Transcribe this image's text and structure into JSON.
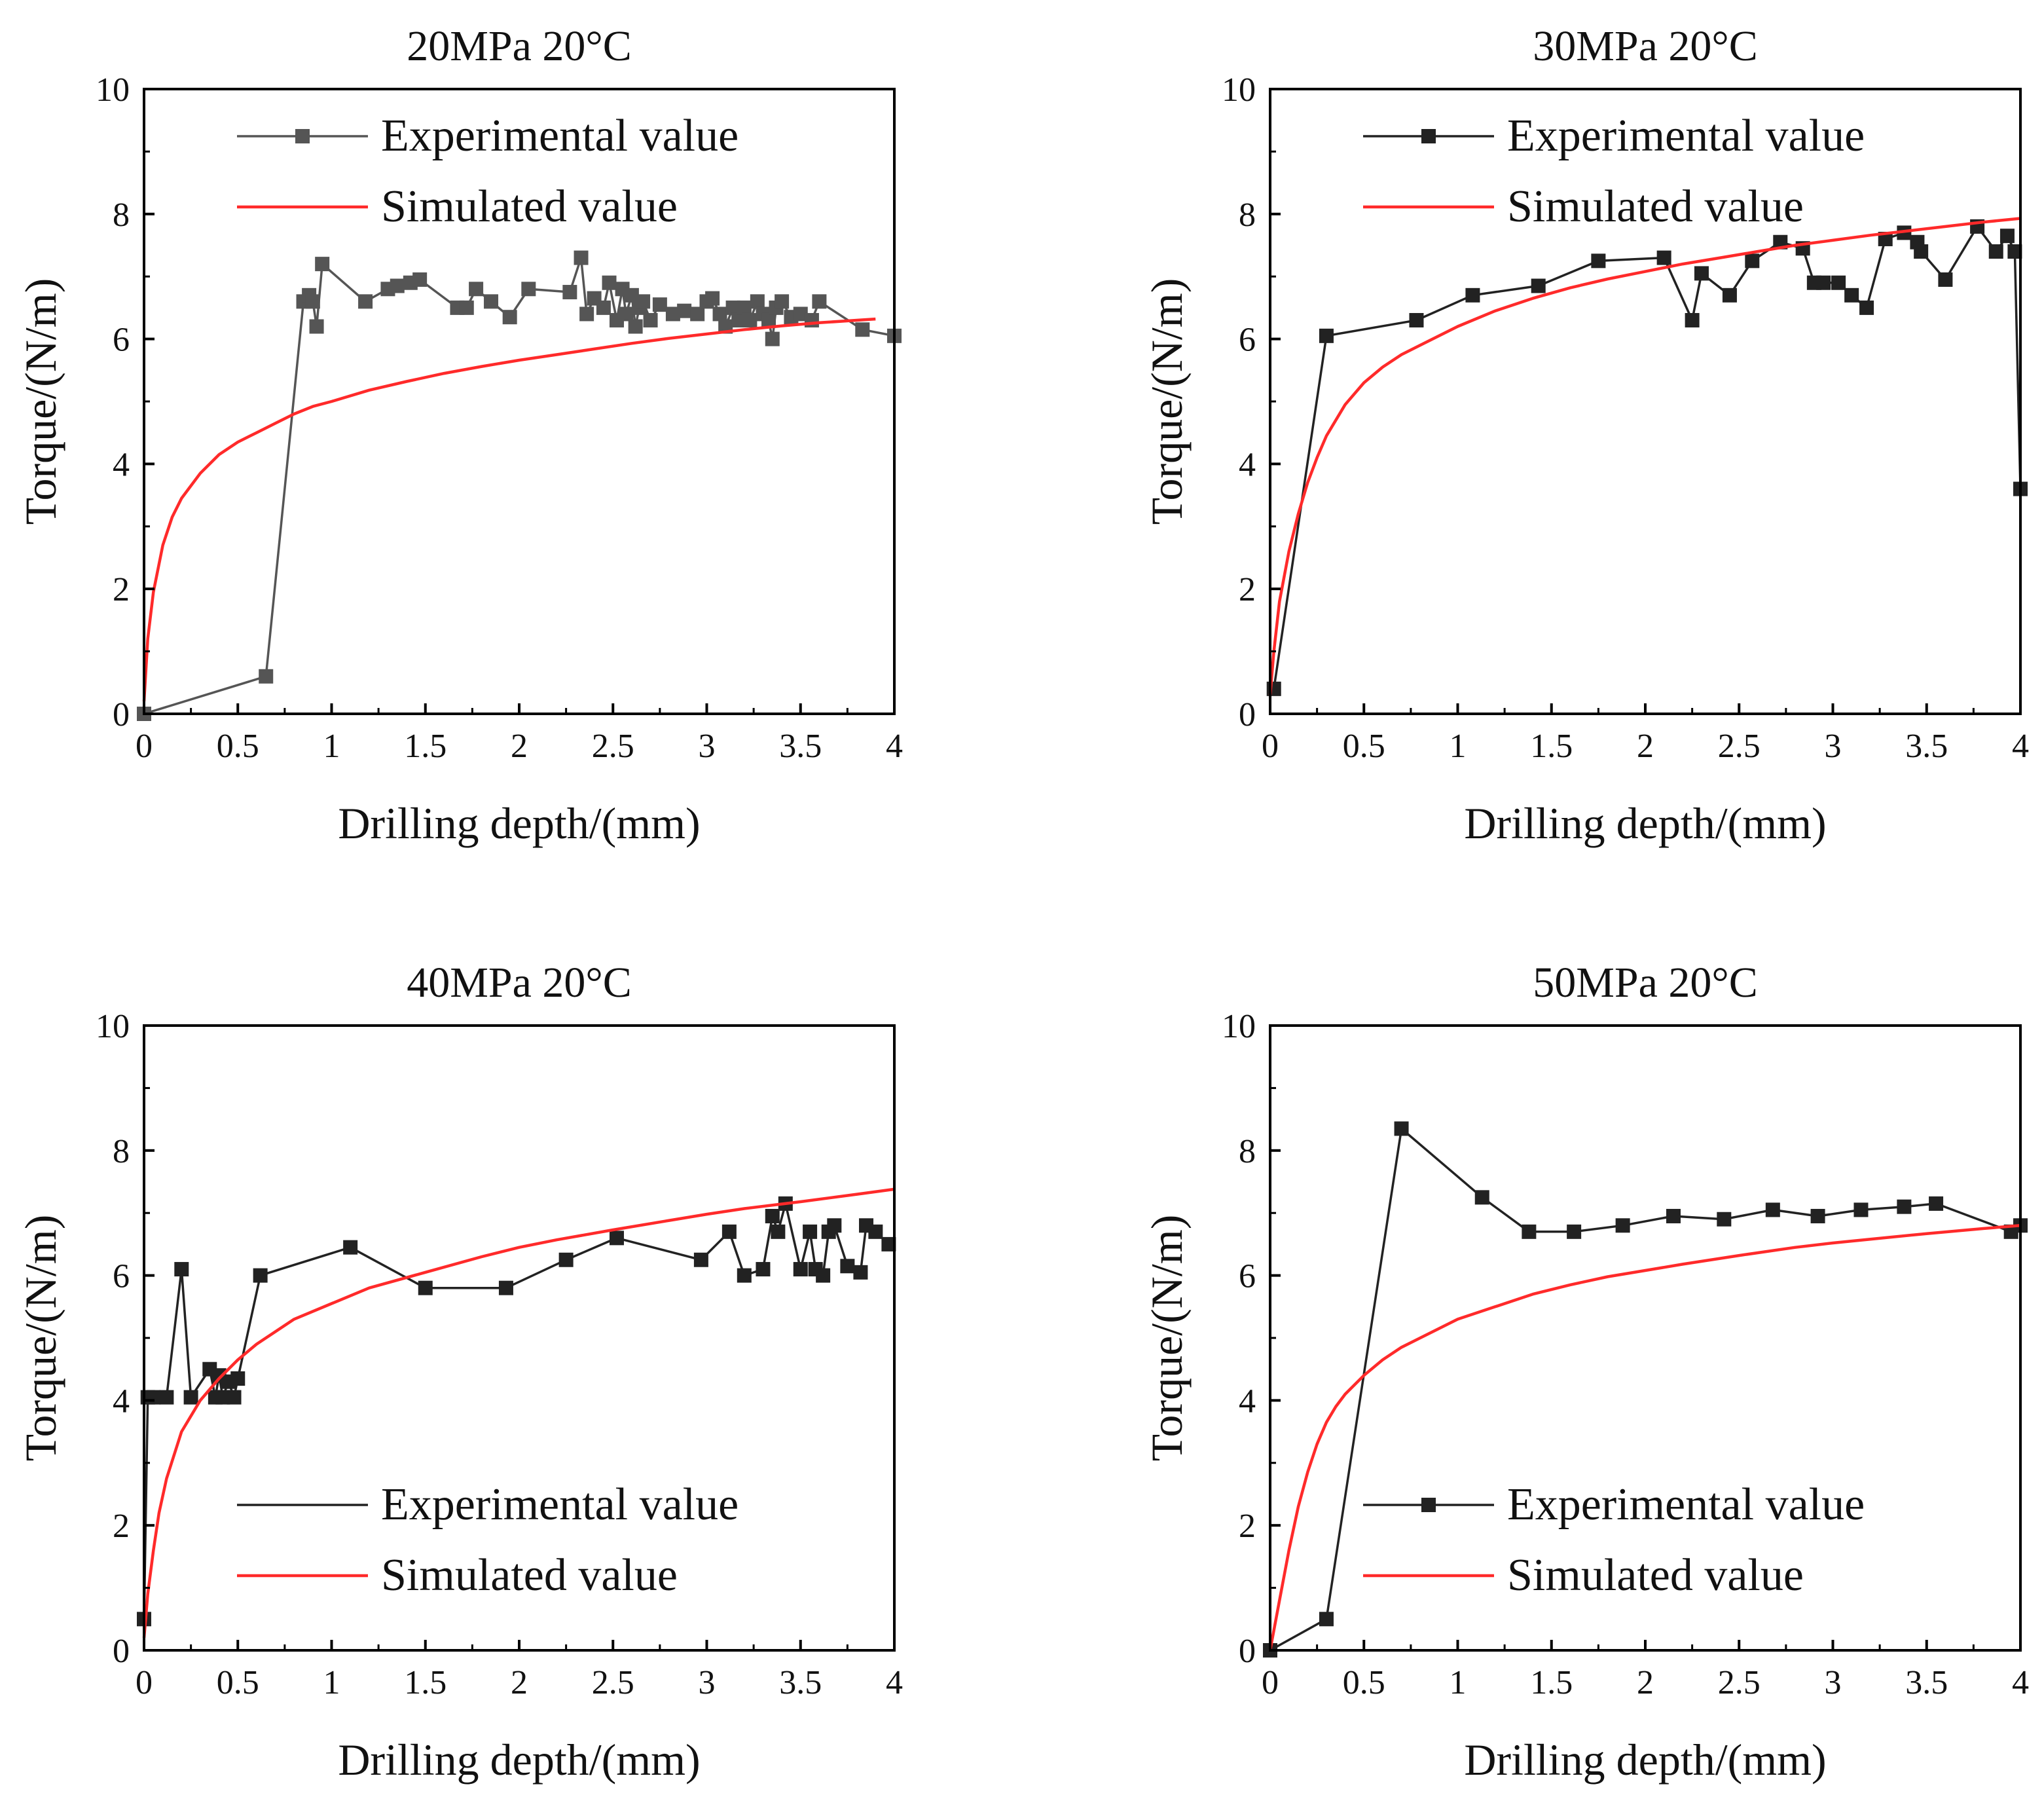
{
  "chart_data": [
    {
      "type": "line",
      "title": "20MPa 20°C",
      "xlabel": "Drilling depth/(mm)",
      "ylabel": "Torque/(N/m)",
      "xlim": [
        0,
        4
      ],
      "ylim": [
        0,
        10
      ],
      "xticks": [
        "0",
        "0.5",
        "1",
        "1.5",
        "2",
        "2.5",
        "3",
        "3.5",
        "4"
      ],
      "yticks": [
        "0",
        "2",
        "4",
        "6",
        "8",
        "10"
      ],
      "legend_position": "top-left",
      "series": [
        {
          "name": "Experimental value",
          "color": "#555555",
          "marker": "square",
          "x": [
            0.0,
            0.65,
            0.85,
            0.88,
            0.9,
            0.92,
            0.95,
            1.18,
            1.3,
            1.35,
            1.42,
            1.47,
            1.67,
            1.72,
            1.77,
            1.85,
            1.95,
            2.05,
            2.27,
            2.33,
            2.36,
            2.4,
            2.45,
            2.48,
            2.52,
            2.55,
            2.57,
            2.6,
            2.62,
            2.64,
            2.66,
            2.7,
            2.75,
            2.82,
            2.88,
            2.95,
            3.0,
            3.03,
            3.07,
            3.1,
            3.14,
            3.17,
            3.2,
            3.23,
            3.27,
            3.3,
            3.33,
            3.35,
            3.37,
            3.4,
            3.45,
            3.5,
            3.56,
            3.6,
            3.83,
            4.0
          ],
          "y": [
            0.0,
            0.6,
            6.6,
            6.7,
            6.6,
            6.2,
            7.2,
            6.6,
            6.8,
            6.85,
            6.9,
            6.95,
            6.5,
            6.5,
            6.8,
            6.6,
            6.35,
            6.8,
            6.75,
            7.3,
            6.4,
            6.65,
            6.5,
            6.9,
            6.3,
            6.8,
            6.4,
            6.7,
            6.2,
            6.5,
            6.6,
            6.3,
            6.55,
            6.4,
            6.45,
            6.4,
            6.6,
            6.65,
            6.4,
            6.2,
            6.5,
            6.3,
            6.5,
            6.3,
            6.6,
            6.4,
            6.3,
            6.0,
            6.5,
            6.6,
            6.35,
            6.4,
            6.3,
            6.6,
            6.15,
            6.05
          ]
        },
        {
          "name": "Simulated value",
          "color": "#ff2a2a",
          "marker": "none",
          "x": [
            0.0,
            0.02,
            0.05,
            0.1,
            0.15,
            0.2,
            0.3,
            0.4,
            0.5,
            0.6,
            0.7,
            0.8,
            0.9,
            1.0,
            1.2,
            1.4,
            1.6,
            1.8,
            2.0,
            2.2,
            2.4,
            2.6,
            2.8,
            3.0,
            3.2,
            3.4,
            3.6,
            3.8,
            3.9
          ],
          "y": [
            0.2,
            1.2,
            1.95,
            2.7,
            3.15,
            3.45,
            3.85,
            4.15,
            4.35,
            4.5,
            4.65,
            4.8,
            4.92,
            5.0,
            5.18,
            5.32,
            5.45,
            5.56,
            5.66,
            5.75,
            5.84,
            5.93,
            6.01,
            6.08,
            6.15,
            6.21,
            6.26,
            6.3,
            6.32
          ]
        }
      ]
    },
    {
      "type": "line",
      "title": "30MPa 20°C",
      "xlabel": "Drilling depth/(mm)",
      "ylabel": "Torque/(N/m)",
      "xlim": [
        0,
        4
      ],
      "ylim": [
        0,
        10
      ],
      "xticks": [
        "0",
        "0.5",
        "1",
        "1.5",
        "2",
        "2.5",
        "3",
        "3.5",
        "4"
      ],
      "yticks": [
        "0",
        "2",
        "4",
        "6",
        "8",
        "10"
      ],
      "legend_position": "top-left",
      "series": [
        {
          "name": "Experimental value",
          "color": "#222222",
          "marker": "square",
          "x": [
            0.02,
            0.3,
            0.78,
            1.08,
            1.43,
            1.75,
            2.1,
            2.25,
            2.3,
            2.45,
            2.57,
            2.72,
            2.84,
            2.9,
            2.95,
            3.03,
            3.1,
            3.18,
            3.28,
            3.38,
            3.45,
            3.47,
            3.6,
            3.77,
            3.87,
            3.93,
            3.97,
            4.0
          ],
          "y": [
            0.4,
            6.05,
            6.3,
            6.7,
            6.85,
            7.25,
            7.3,
            6.3,
            7.05,
            6.7,
            7.25,
            7.55,
            7.45,
            6.9,
            6.9,
            6.9,
            6.7,
            6.5,
            7.6,
            7.7,
            7.55,
            7.4,
            6.95,
            7.8,
            7.4,
            7.65,
            7.4,
            3.6
          ]
        },
        {
          "name": "Simulated value",
          "color": "#ff2a2a",
          "marker": "none",
          "x": [
            0.0,
            0.02,
            0.05,
            0.1,
            0.15,
            0.2,
            0.25,
            0.3,
            0.4,
            0.5,
            0.6,
            0.7,
            0.8,
            1.0,
            1.2,
            1.4,
            1.6,
            1.8,
            2.0,
            2.2,
            2.4,
            2.6,
            2.8,
            3.0,
            3.2,
            3.4,
            3.6,
            3.8,
            4.0
          ],
          "y": [
            0.3,
            1.0,
            1.8,
            2.6,
            3.2,
            3.7,
            4.1,
            4.45,
            4.95,
            5.3,
            5.55,
            5.75,
            5.9,
            6.2,
            6.45,
            6.65,
            6.82,
            6.96,
            7.08,
            7.2,
            7.3,
            7.4,
            7.5,
            7.58,
            7.66,
            7.73,
            7.8,
            7.87,
            7.93
          ]
        }
      ]
    },
    {
      "type": "line",
      "title": "40MPa 20°C",
      "xlabel": "Drilling depth/(mm)",
      "ylabel": "Torque/(N/m)",
      "xlim": [
        0,
        4
      ],
      "ylim": [
        0,
        10
      ],
      "xticks": [
        "0",
        "0.5",
        "1",
        "1.5",
        "2",
        "2.5",
        "3",
        "3.5",
        "4"
      ],
      "yticks": [
        "0",
        "2",
        "4",
        "6",
        "8",
        "10"
      ],
      "legend_position": "bottom-left",
      "series": [
        {
          "name": "Experimental value",
          "color": "#222222",
          "marker": "square",
          "x": [
            0.0,
            0.02,
            0.05,
            0.12,
            0.2,
            0.25,
            0.35,
            0.38,
            0.4,
            0.42,
            0.45,
            0.48,
            0.5,
            0.62,
            1.1,
            1.5,
            1.93,
            2.25,
            2.52,
            2.97,
            3.12,
            3.2,
            3.3,
            3.35,
            3.38,
            3.42,
            3.5,
            3.55,
            3.58,
            3.62,
            3.65,
            3.68,
            3.75,
            3.82,
            3.85,
            3.9,
            3.97
          ],
          "y": [
            0.5,
            4.05,
            4.05,
            4.05,
            6.1,
            4.05,
            4.5,
            4.05,
            4.4,
            4.05,
            4.3,
            4.05,
            4.35,
            6.0,
            6.45,
            5.8,
            5.8,
            6.25,
            6.6,
            6.25,
            6.7,
            6.0,
            6.1,
            6.95,
            6.7,
            7.15,
            6.1,
            6.7,
            6.1,
            6.0,
            6.7,
            6.8,
            6.15,
            6.05,
            6.8,
            6.7,
            6.5
          ]
        },
        {
          "name": "Simulated value",
          "color": "#ff2a2a",
          "marker": "none",
          "x": [
            0.0,
            0.02,
            0.05,
            0.08,
            0.12,
            0.2,
            0.3,
            0.4,
            0.5,
            0.6,
            0.8,
            1.0,
            1.2,
            1.5,
            1.8,
            2.0,
            2.2,
            2.5,
            2.8,
            3.0,
            3.2,
            3.5,
            3.8,
            4.0
          ],
          "y": [
            0.2,
            0.9,
            1.6,
            2.2,
            2.75,
            3.5,
            4.0,
            4.35,
            4.65,
            4.9,
            5.3,
            5.55,
            5.8,
            6.05,
            6.3,
            6.45,
            6.57,
            6.73,
            6.88,
            6.98,
            7.07,
            7.18,
            7.3,
            7.38
          ]
        }
      ]
    },
    {
      "type": "line",
      "title": "50MPa 20°C",
      "xlabel": "Drilling depth/(mm)",
      "ylabel": "Torque/(N/m)",
      "xlim": [
        0,
        4
      ],
      "ylim": [
        0,
        10
      ],
      "xticks": [
        "0",
        "0.5",
        "1",
        "1.5",
        "2",
        "2.5",
        "3",
        "3.5",
        "4"
      ],
      "yticks": [
        "0",
        "2",
        "4",
        "6",
        "8",
        "10"
      ],
      "legend_position": "bottom-left",
      "series": [
        {
          "name": "Experimental value",
          "color": "#222222",
          "marker": "square",
          "x": [
            0.0,
            0.3,
            0.7,
            1.13,
            1.38,
            1.62,
            1.88,
            2.15,
            2.42,
            2.68,
            2.92,
            3.15,
            3.38,
            3.55,
            3.95,
            4.0
          ],
          "y": [
            0.0,
            0.5,
            8.35,
            7.25,
            6.7,
            6.7,
            6.8,
            6.95,
            6.9,
            7.05,
            6.95,
            7.05,
            7.1,
            7.15,
            6.7,
            6.8
          ]
        },
        {
          "name": "Simulated value",
          "color": "#ff2a2a",
          "marker": "none",
          "x": [
            0.0,
            0.05,
            0.1,
            0.15,
            0.2,
            0.25,
            0.3,
            0.35,
            0.4,
            0.5,
            0.6,
            0.7,
            0.8,
            1.0,
            1.2,
            1.4,
            1.6,
            1.8,
            2.0,
            2.2,
            2.5,
            2.8,
            3.0,
            3.2,
            3.5,
            3.8,
            4.0
          ],
          "y": [
            0.0,
            0.8,
            1.6,
            2.3,
            2.85,
            3.3,
            3.65,
            3.9,
            4.1,
            4.4,
            4.65,
            4.85,
            5.0,
            5.3,
            5.5,
            5.7,
            5.85,
            5.98,
            6.08,
            6.18,
            6.32,
            6.45,
            6.52,
            6.58,
            6.67,
            6.75,
            6.8
          ]
        }
      ]
    }
  ]
}
